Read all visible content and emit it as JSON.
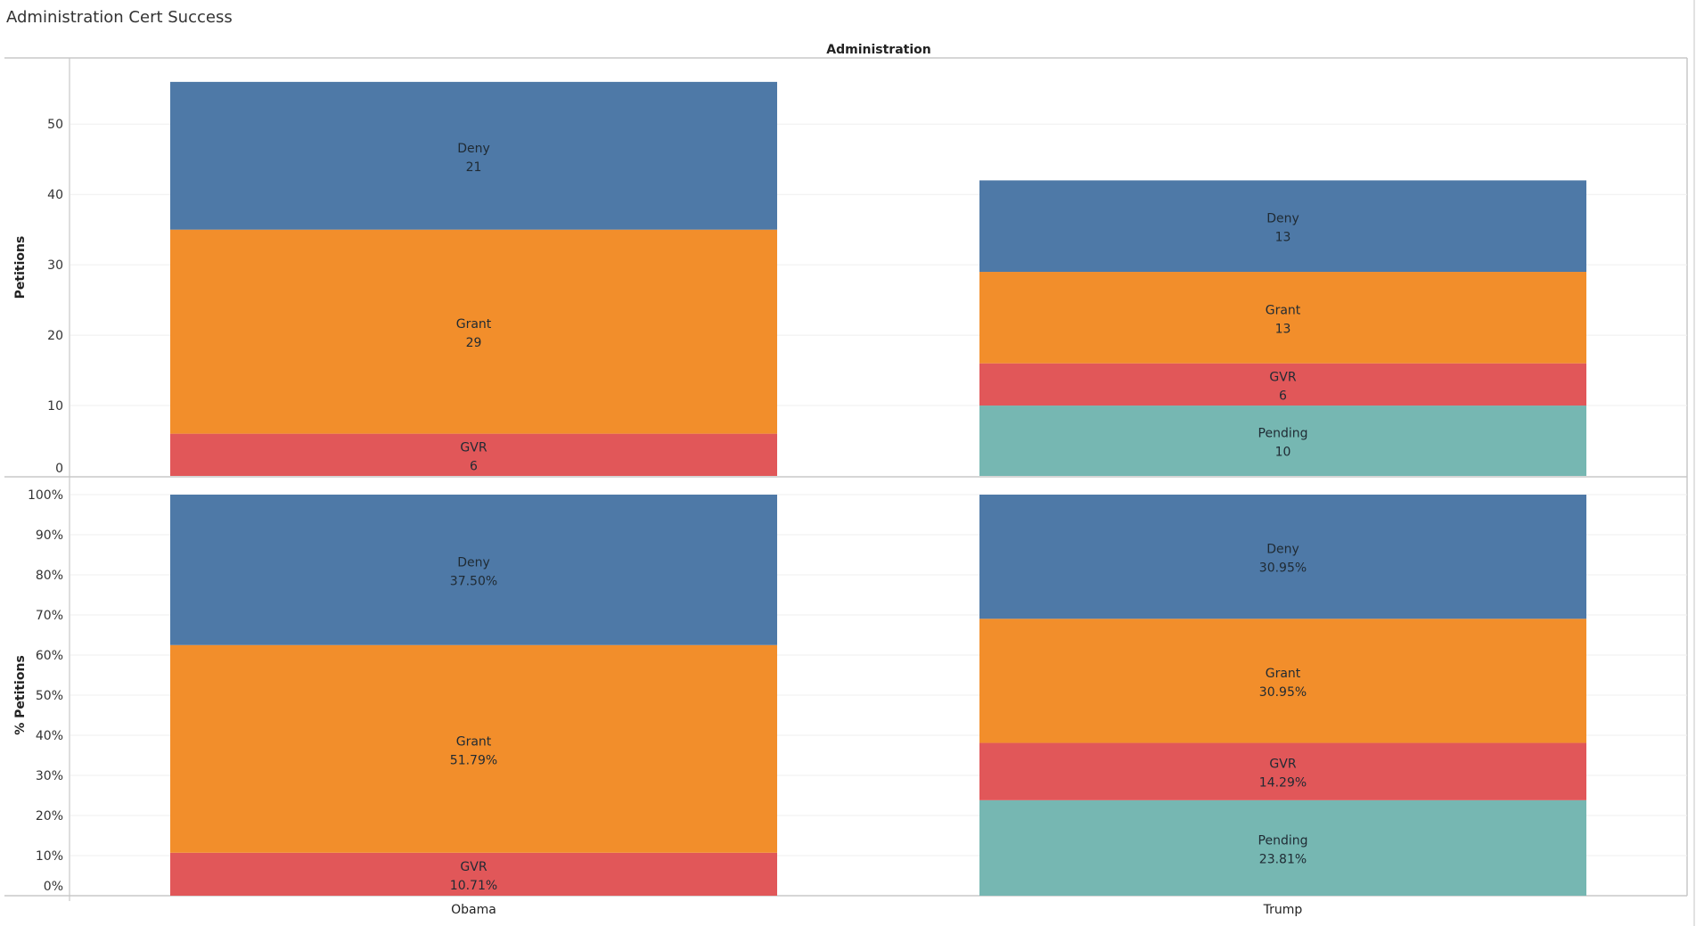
{
  "page": {
    "title": "Administration Cert Success"
  },
  "chart_data": [
    {
      "type": "bar",
      "stacked": true,
      "title": "Administration Cert Success",
      "column_header": "Administration",
      "categories": [
        "Obama",
        "Trump"
      ],
      "ylabel": "Petitions",
      "xlabel": "",
      "ylim": [
        0,
        57
      ],
      "yticks": [
        0,
        10,
        20,
        30,
        40,
        50
      ],
      "ytick_labels": [
        "0",
        "10",
        "20",
        "30",
        "40",
        "50"
      ],
      "grid": true,
      "series": [
        {
          "name": "Pending",
          "color": "#76b7b2",
          "values": [
            0,
            10
          ],
          "labels": [
            "",
            "10"
          ]
        },
        {
          "name": "GVR",
          "color": "#e15759",
          "values": [
            6,
            6
          ],
          "labels": [
            "6",
            "6"
          ]
        },
        {
          "name": "Grant",
          "color": "#f28e2b",
          "values": [
            29,
            13
          ],
          "labels": [
            "29",
            "13"
          ]
        },
        {
          "name": "Deny",
          "color": "#4e79a7",
          "values": [
            21,
            13
          ],
          "labels": [
            "21",
            "13"
          ]
        }
      ]
    },
    {
      "type": "bar",
      "stacked": true,
      "categories": [
        "Obama",
        "Trump"
      ],
      "ylabel": "% Petitions",
      "xlabel": "",
      "ylim": [
        0,
        100
      ],
      "yticks": [
        0,
        10,
        20,
        30,
        40,
        50,
        60,
        70,
        80,
        90,
        100
      ],
      "ytick_labels": [
        "0%",
        "10%",
        "20%",
        "30%",
        "40%",
        "50%",
        "60%",
        "70%",
        "80%",
        "90%",
        "100%"
      ],
      "grid": true,
      "series": [
        {
          "name": "Pending",
          "color": "#76b7b2",
          "values": [
            0,
            23.81
          ],
          "labels": [
            "",
            "23.81%"
          ]
        },
        {
          "name": "GVR",
          "color": "#e15759",
          "values": [
            10.71,
            14.29
          ],
          "labels": [
            "10.71%",
            "14.29%"
          ]
        },
        {
          "name": "Grant",
          "color": "#f28e2b",
          "values": [
            51.79,
            30.95
          ],
          "labels": [
            "51.79%",
            "30.95%"
          ]
        },
        {
          "name": "Deny",
          "color": "#4e79a7",
          "values": [
            37.5,
            30.95
          ],
          "labels": [
            "37.50%",
            "30.95%"
          ]
        }
      ]
    }
  ]
}
